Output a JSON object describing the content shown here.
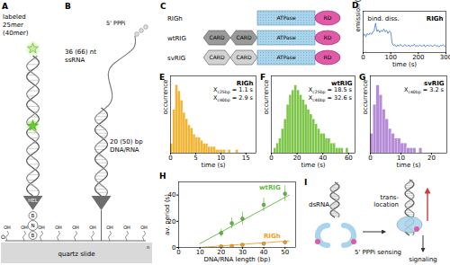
{
  "panels": {
    "A": {
      "letter": "A",
      "label_lines": [
        "labeled",
        "25mer",
        "(40mer)"
      ],
      "helicase": "HEL",
      "linker": [
        "B",
        "N",
        "B"
      ],
      "surface": {
        "groups": [
          "OH",
          "OH",
          "OH",
          "OH",
          "OH",
          "OH",
          "OH",
          "OH",
          "OH"
        ],
        "repeat_atom": "O",
        "repeat_index": "n",
        "label": "quartz slide"
      }
    },
    "B": {
      "letter": "B",
      "ssrna_lines": [
        "36 (66) nt",
        "ssRNA"
      ],
      "cap": "5' PPPi",
      "duplex_lines": [
        "20 (50) bp",
        "DNA/RNA"
      ]
    },
    "C": {
      "letter": "C",
      "constructs": [
        {
          "name": "RIGh",
          "domains": [
            {
              "text": "ATPase",
              "shape": "box",
              "color": "#a8d4ec"
            },
            {
              "text": "RD",
              "shape": "ellipse",
              "color": "#e15aa6"
            }
          ]
        },
        {
          "name": "wtRIG",
          "domains": [
            {
              "text": "CARD",
              "shape": "hexagon",
              "color": "#9a9a9a"
            },
            {
              "text": "CARD",
              "shape": "hexagon",
              "color": "#9a9a9a"
            },
            {
              "text": "ATPase",
              "shape": "box",
              "color": "#a8d4ec"
            },
            {
              "text": "RD",
              "shape": "ellipse",
              "color": "#e15aa6"
            }
          ]
        },
        {
          "name": "svRIG",
          "domains": [
            {
              "text": "CARD",
              "shape": "hexagon",
              "color": "#d2d2d2"
            },
            {
              "text": "CARD",
              "shape": "hexagon",
              "color": "#d2d2d2"
            },
            {
              "text": "ATPase",
              "shape": "box",
              "color": "#a8d4ec"
            },
            {
              "text": "RD",
              "shape": "ellipse",
              "color": "#e15aa6"
            }
          ]
        }
      ]
    },
    "I": {
      "letter": "I",
      "dsrna": "dsRNA",
      "sensing": "5' PPPi sensing",
      "translocation": [
        "trans-",
        "location"
      ],
      "signaling": "signaling"
    }
  },
  "chart_data": [
    {
      "panel": "D",
      "type": "line",
      "title": "RIGh",
      "color": "#1f63d0",
      "x": [
        0,
        5,
        10,
        15,
        20,
        25,
        30,
        35,
        40,
        45,
        50,
        55,
        60,
        65,
        70,
        75,
        80,
        85,
        90,
        95,
        100,
        105,
        110,
        115,
        120,
        125,
        130,
        135,
        140,
        145,
        150,
        155,
        160,
        165,
        170,
        175,
        180,
        185,
        190,
        195,
        200,
        205,
        210,
        215,
        220,
        225,
        230,
        235,
        240,
        245,
        250,
        255,
        260,
        265,
        270,
        275,
        280,
        285,
        290,
        295,
        300
      ],
      "values": [
        0.52,
        0.58,
        0.5,
        0.6,
        0.55,
        0.62,
        0.57,
        0.64,
        0.7,
        0.92,
        0.66,
        0.72,
        0.63,
        0.7,
        0.66,
        0.74,
        0.65,
        0.7,
        0.6,
        0.68,
        0.64,
        0.3,
        0.22,
        0.25,
        0.18,
        0.24,
        0.2,
        0.26,
        0.21,
        0.19,
        0.25,
        0.22,
        0.2,
        0.24,
        0.18,
        0.23,
        0.21,
        0.26,
        0.2,
        0.22,
        0.19,
        0.24,
        0.21,
        0.2,
        0.25,
        0.18,
        0.22,
        0.23,
        0.2,
        0.24,
        0.19,
        0.21,
        0.25,
        0.2,
        0.22,
        0.18,
        0.23,
        0.21,
        0.24,
        0.2,
        0.22
      ],
      "xlim": [
        0,
        300
      ],
      "xticks": [
        0,
        100,
        200,
        300
      ],
      "ylim": [
        0,
        1.3
      ],
      "xlabel": "time (s)",
      "ylabel": "emission (a.u.)",
      "tick_labels": "x",
      "annotations": [
        {
          "text": "bind.",
          "x": 45
        },
        {
          "text": "diss.",
          "x": 105
        }
      ]
    },
    {
      "panel": "E",
      "type": "histogram",
      "title": "RIGh",
      "color": "#f3b431",
      "bins": [
        0,
        0.5,
        1,
        1.5,
        2,
        2.5,
        3,
        3.5,
        4,
        4.5,
        5,
        5.5,
        6,
        6.5,
        7,
        7.5,
        8,
        8.5,
        9,
        9.5,
        10,
        10.5,
        11,
        11.5,
        12,
        12.5,
        13,
        13.5,
        14,
        14.5,
        15
      ],
      "counts": [
        3,
        14,
        22,
        20,
        17,
        13,
        11,
        9,
        8,
        6,
        5,
        5,
        4,
        3,
        3,
        2,
        2,
        2,
        1,
        1,
        1,
        1,
        0,
        1,
        0,
        0,
        1,
        0,
        0,
        0
      ],
      "xlim": [
        0,
        17
      ],
      "xticks": [
        0,
        5,
        10,
        15
      ],
      "ylim": [
        0,
        25
      ],
      "xlabel": "time (s)",
      "ylabel": "occurrence",
      "tick_labels": "x",
      "annotations": [
        {
          "symbol": "X",
          "sub": "c25bp",
          "relation": "=",
          "value": 1.1,
          "unit": "s"
        },
        {
          "symbol": "X",
          "sub": "c40bp",
          "relation": "=",
          "value": 2.9,
          "unit": "s"
        }
      ]
    },
    {
      "panel": "F",
      "type": "histogram",
      "title": "wtRIG",
      "color": "#7dc64a",
      "bins": [
        0,
        2,
        4,
        6,
        8,
        10,
        12,
        14,
        16,
        18,
        20,
        22,
        24,
        26,
        28,
        30,
        32,
        34,
        36,
        38,
        40,
        42,
        44,
        46,
        48,
        50,
        52,
        54,
        56,
        58,
        60
      ],
      "counts": [
        0,
        1,
        2,
        3,
        5,
        7,
        10,
        12,
        13,
        14,
        13,
        12,
        11,
        10,
        9,
        8,
        7,
        6,
        5,
        4,
        4,
        3,
        3,
        2,
        2,
        1,
        1,
        1,
        0,
        1
      ],
      "xlim": [
        0,
        65
      ],
      "xticks": [
        0,
        20,
        40,
        60
      ],
      "ylim": [
        0,
        16
      ],
      "xlabel": "time (s)",
      "ylabel": "occurrence",
      "tick_labels": "x",
      "annotations": [
        {
          "symbol": "X",
          "sub": "c25bp",
          "relation": "=",
          "value": 18.5,
          "unit": "s"
        },
        {
          "symbol": "X",
          "sub": "c40bp",
          "relation": "=",
          "value": 32.6,
          "unit": "s"
        }
      ]
    },
    {
      "panel": "G",
      "type": "histogram",
      "title": "svRIG",
      "color": "#b68bd8",
      "bins": [
        0,
        1,
        2,
        3,
        4,
        5,
        6,
        7,
        8,
        9,
        10,
        11,
        12,
        13,
        14,
        15,
        16,
        17,
        18,
        19,
        20
      ],
      "counts": [
        4,
        10,
        14,
        12,
        9,
        7,
        5,
        4,
        3,
        3,
        2,
        2,
        1,
        1,
        1,
        0,
        1,
        0,
        0,
        0
      ],
      "xlim": [
        0,
        25
      ],
      "xticks": [
        0,
        10,
        20
      ],
      "ylim": [
        0,
        16
      ],
      "xlabel": "time (s)",
      "ylabel": "occurrence",
      "tick_labels": "x",
      "annotations": [
        {
          "symbol": "X",
          "sub": "c40bp",
          "relation": "=",
          "value": 3.2,
          "unit": "s"
        }
      ]
    },
    {
      "panel": "H",
      "type": "scatter",
      "series": [
        {
          "name": "wtRIG",
          "color": "#5fb83a",
          "x": [
            20,
            25,
            30,
            40,
            50
          ],
          "values": [
            11,
            18.5,
            22,
            32.6,
            41
          ],
          "error": [
            3,
            4,
            5,
            5,
            6
          ],
          "fit": {
            "x": [
              10,
              52
            ],
            "values": [
              3,
              40
            ]
          }
        },
        {
          "name": "RIGh",
          "color": "#f0a020",
          "x": [
            20,
            25,
            30,
            40,
            50
          ],
          "values": [
            0.8,
            1.1,
            2,
            2.9,
            4
          ],
          "error": [
            0.5,
            0.6,
            0.8,
            1,
            1.2
          ],
          "fit": {
            "x": [
              10,
              52
            ],
            "values": [
              0,
              5
            ]
          }
        }
      ],
      "xlim": [
        0,
        55
      ],
      "xticks": [
        0,
        10,
        20,
        30,
        40,
        50
      ],
      "ylim": [
        0,
        50
      ],
      "yticks": [
        0,
        20,
        40
      ],
      "xlabel": "DNA/RNA length (bp)",
      "ylabel": "av. period (s)"
    }
  ]
}
